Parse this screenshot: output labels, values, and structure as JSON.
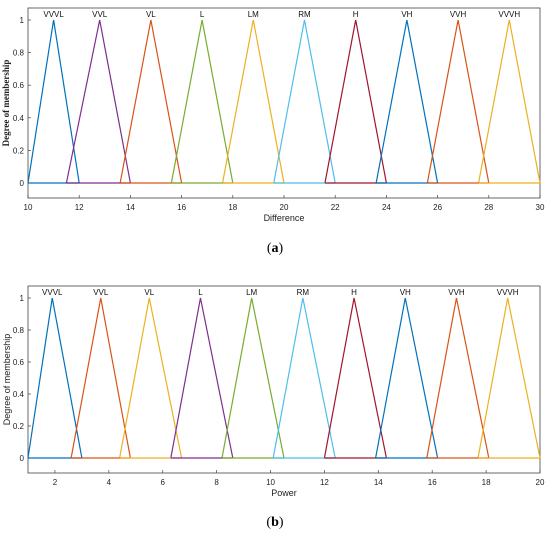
{
  "chart_data": [
    {
      "type": "line",
      "panel_caption": "a",
      "xlabel": "Difference",
      "ylabel": "Degree of membership",
      "xlim": [
        10,
        30
      ],
      "ylim": [
        0,
        1
      ],
      "x_ticks": [
        "10",
        "12",
        "14",
        "16",
        "18",
        "20",
        "22",
        "24",
        "26",
        "28",
        "30"
      ],
      "y_ticks": [
        "0",
        "0.2",
        "0.4",
        "0.6",
        "0.8",
        "1"
      ],
      "grid": false,
      "series": [
        {
          "name": "VVVL",
          "x": [
            10,
            11,
            12
          ],
          "y": [
            0,
            1,
            0
          ],
          "color": "#0072bd"
        },
        {
          "name": "VVL",
          "x": [
            11.5,
            12.8,
            14
          ],
          "y": [
            0,
            1,
            0
          ],
          "color": "#7e2f8e"
        },
        {
          "name": "VL",
          "x": [
            13.6,
            14.8,
            16
          ],
          "y": [
            0,
            1,
            0
          ],
          "color": "#d95319"
        },
        {
          "name": "L",
          "x": [
            15.6,
            16.8,
            18
          ],
          "y": [
            0,
            1,
            0
          ],
          "color": "#77ac30"
        },
        {
          "name": "LM",
          "x": [
            17.6,
            18.8,
            20
          ],
          "y": [
            0,
            1,
            0
          ],
          "color": "#edb120"
        },
        {
          "name": "RM",
          "x": [
            19.6,
            20.8,
            22
          ],
          "y": [
            0,
            1,
            0
          ],
          "color": "#4dbeee"
        },
        {
          "name": "H",
          "x": [
            21.6,
            22.8,
            24
          ],
          "y": [
            0,
            1,
            0
          ],
          "color": "#a2142f"
        },
        {
          "name": "VH",
          "x": [
            23.6,
            24.8,
            26
          ],
          "y": [
            0,
            1,
            0
          ],
          "color": "#0072bd"
        },
        {
          "name": "VVH",
          "x": [
            25.6,
            26.8,
            28
          ],
          "y": [
            0,
            1,
            0
          ],
          "color": "#d95319"
        },
        {
          "name": "VVVH",
          "x": [
            27.6,
            28.8,
            30
          ],
          "y": [
            0,
            1,
            0
          ],
          "color": "#edb120"
        }
      ]
    },
    {
      "type": "line",
      "panel_caption": "b",
      "xlabel": "Power",
      "ylabel": "Degree of membership",
      "xlim": [
        1,
        20
      ],
      "ylim": [
        0,
        1
      ],
      "x_ticks": [
        "2",
        "4",
        "6",
        "8",
        "10",
        "12",
        "14",
        "16",
        "18",
        "20"
      ],
      "y_ticks": [
        "0",
        "0.2",
        "0.4",
        "0.6",
        "0.8",
        "1"
      ],
      "grid": false,
      "series": [
        {
          "name": "VVVL",
          "x": [
            1,
            1.9,
            3
          ],
          "y": [
            0,
            1,
            0
          ],
          "color": "#0072bd"
        },
        {
          "name": "VVL",
          "x": [
            2.6,
            3.7,
            4.8
          ],
          "y": [
            0,
            1,
            0
          ],
          "color": "#d95319"
        },
        {
          "name": "VL",
          "x": [
            4.4,
            5.5,
            6.7
          ],
          "y": [
            0,
            1,
            0
          ],
          "color": "#edb120"
        },
        {
          "name": "L",
          "x": [
            6.3,
            7.4,
            8.6
          ],
          "y": [
            0,
            1,
            0
          ],
          "color": "#7e2f8e"
        },
        {
          "name": "LM",
          "x": [
            8.2,
            9.3,
            10.5
          ],
          "y": [
            0,
            1,
            0
          ],
          "color": "#77ac30"
        },
        {
          "name": "RM",
          "x": [
            10.1,
            11.2,
            12.4
          ],
          "y": [
            0,
            1,
            0
          ],
          "color": "#4dbeee"
        },
        {
          "name": "H",
          "x": [
            12,
            13.1,
            14.3
          ],
          "y": [
            0,
            1,
            0
          ],
          "color": "#a2142f"
        },
        {
          "name": "VH",
          "x": [
            13.9,
            15,
            16.2
          ],
          "y": [
            0,
            1,
            0
          ],
          "color": "#0072bd"
        },
        {
          "name": "VVH",
          "x": [
            15.8,
            16.9,
            18.1
          ],
          "y": [
            0,
            1,
            0
          ],
          "color": "#d95319"
        },
        {
          "name": "VVVH",
          "x": [
            17.7,
            18.8,
            20
          ],
          "y": [
            0,
            1,
            0
          ],
          "color": "#edb120"
        }
      ]
    }
  ]
}
